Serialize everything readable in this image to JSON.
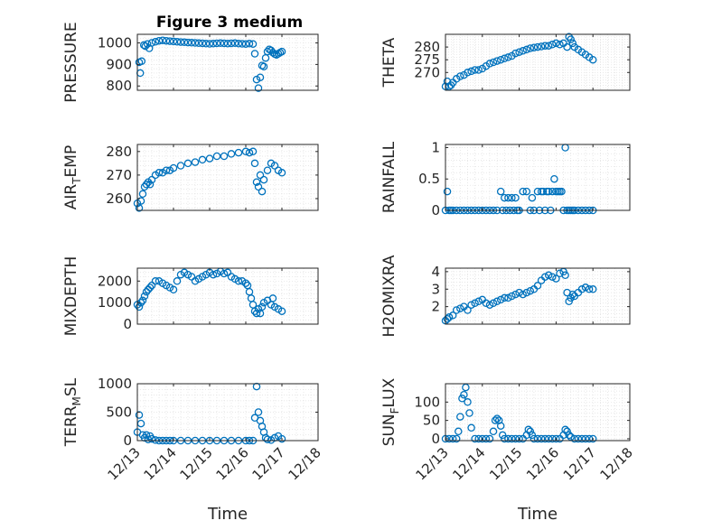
{
  "figure": {
    "title": "Figure 3 medium",
    "xlabel": "Time"
  },
  "style": {
    "marker_color": "#0072BD",
    "axis_color": "#262626",
    "grid_color": "#dfdfdf",
    "background": "#ffffff"
  },
  "chart_data": [
    {
      "type": "scatter",
      "ylabel": "PRESSURE",
      "ylim": [
        780,
        1040
      ],
      "yticks": [
        "800",
        "900",
        "1000"
      ],
      "xlim": [
        "12/13",
        "12/17"
      ],
      "grid": "on",
      "x": [
        13.05,
        13.08,
        13.12,
        13.18,
        13.22,
        13.28,
        13.33,
        13.4,
        13.5,
        13.6,
        13.7,
        13.8,
        13.9,
        14.0,
        14.1,
        14.2,
        14.3,
        14.4,
        14.5,
        14.6,
        14.7,
        14.8,
        14.9,
        15.0,
        15.1,
        15.2,
        15.3,
        15.4,
        15.5,
        15.6,
        15.7,
        15.8,
        15.9,
        16.0,
        16.1,
        16.2,
        16.25,
        16.3,
        16.35,
        16.4,
        16.45,
        16.5,
        16.55,
        16.6,
        16.65,
        16.7,
        16.75,
        16.8,
        16.85,
        16.9,
        16.95,
        17.0
      ],
      "y": [
        910,
        860,
        915,
        990,
        985,
        995,
        975,
        1000,
        1005,
        1010,
        1012,
        1010,
        1008,
        1007,
        1005,
        1004,
        1003,
        1002,
        1001,
        1000,
        999,
        998,
        997,
        996,
        997,
        998,
        999,
        998,
        997,
        998,
        999,
        997,
        996,
        995,
        997,
        995,
        950,
        830,
        790,
        840,
        895,
        890,
        930,
        960,
        970,
        965,
        955,
        948,
        945,
        950,
        955,
        960
      ]
    },
    {
      "type": "scatter",
      "ylabel": "THETA",
      "ylim": [
        263,
        285
      ],
      "yticks": [
        "270",
        "275",
        "280"
      ],
      "xlim": [
        "12/13",
        "12/18"
      ],
      "grid": "on",
      "x": [
        13.0,
        13.05,
        13.1,
        13.15,
        13.2,
        13.3,
        13.4,
        13.5,
        13.6,
        13.7,
        13.8,
        13.9,
        14.0,
        14.1,
        14.2,
        14.3,
        14.4,
        14.5,
        14.6,
        14.7,
        14.8,
        14.9,
        15.0,
        15.1,
        15.2,
        15.3,
        15.4,
        15.5,
        15.6,
        15.7,
        15.8,
        15.9,
        16.0,
        16.1,
        16.2,
        16.3,
        16.35,
        16.4,
        16.45,
        16.5,
        16.6,
        16.7,
        16.8,
        16.9,
        17.0
      ],
      "y": [
        264.5,
        266.5,
        264.5,
        265,
        266,
        267.5,
        268.5,
        269,
        270,
        270.5,
        271,
        271,
        271.5,
        272.5,
        273.5,
        274,
        274.5,
        275,
        275.5,
        276,
        276.5,
        277.5,
        278,
        278.5,
        279,
        279.5,
        279.8,
        280,
        280.2,
        280.5,
        280.5,
        281,
        281.5,
        281,
        281.5,
        280,
        284,
        283,
        281.5,
        280,
        279,
        278,
        277,
        276,
        275
      ]
    },
    {
      "type": "scatter",
      "ylabel": "AIR_TEMP",
      "ylim": [
        255,
        283
      ],
      "yticks": [
        "260",
        "270",
        "280"
      ],
      "xlim": [
        "12/13",
        "12/17"
      ],
      "grid": "on",
      "x": [
        13.0,
        13.05,
        13.1,
        13.15,
        13.2,
        13.25,
        13.3,
        13.35,
        13.4,
        13.5,
        13.6,
        13.7,
        13.8,
        13.9,
        14.0,
        14.2,
        14.4,
        14.6,
        14.8,
        15.0,
        15.2,
        15.4,
        15.6,
        15.8,
        16.0,
        16.1,
        16.2,
        16.25,
        16.3,
        16.35,
        16.4,
        16.45,
        16.5,
        16.6,
        16.7,
        16.8,
        16.9,
        17.0
      ],
      "y": [
        258,
        256,
        259,
        262,
        265,
        266,
        267,
        266,
        268,
        270,
        271,
        271,
        272,
        272,
        273,
        274,
        275,
        275.5,
        276.5,
        277,
        278,
        278,
        279,
        279.5,
        280,
        279.5,
        280,
        275,
        267,
        265,
        270,
        263,
        268,
        272,
        275,
        274,
        272,
        271
      ]
    },
    {
      "type": "scatter",
      "ylabel": "RAINFALL",
      "ylim": [
        0,
        1.05
      ],
      "yticks": [
        "0",
        "0.5",
        "1"
      ],
      "xlim": [
        "12/13",
        "12/18"
      ],
      "grid": "on",
      "x": [
        13.0,
        13.05,
        13.1,
        13.15,
        13.2,
        13.3,
        13.4,
        13.5,
        13.6,
        13.7,
        13.8,
        13.9,
        14.0,
        14.1,
        14.2,
        14.3,
        14.4,
        14.5,
        14.55,
        14.6,
        14.65,
        14.7,
        14.75,
        14.8,
        14.85,
        14.9,
        14.95,
        15.0,
        15.1,
        15.2,
        15.3,
        15.35,
        15.4,
        15.5,
        15.55,
        15.6,
        15.65,
        15.7,
        15.75,
        15.8,
        15.85,
        15.9,
        15.95,
        16.0,
        16.05,
        16.1,
        16.15,
        16.2,
        16.25,
        16.3,
        16.35,
        16.4,
        16.45,
        16.5,
        16.6,
        16.7,
        16.8,
        16.9,
        17.0
      ],
      "y": [
        0,
        0.3,
        0,
        0,
        0,
        0,
        0,
        0,
        0,
        0,
        0,
        0,
        0,
        0,
        0,
        0,
        0,
        0.3,
        0,
        0.2,
        0,
        0.2,
        0,
        0.2,
        0,
        0.2,
        0,
        0,
        0.3,
        0.3,
        0,
        0.2,
        0,
        0.3,
        0,
        0.3,
        0.3,
        0,
        0.3,
        0.3,
        0,
        0.3,
        0.5,
        0.3,
        0.3,
        0.3,
        0.3,
        0,
        1,
        0,
        0,
        0,
        0,
        0,
        0,
        0,
        0,
        0,
        0
      ]
    },
    {
      "type": "scatter",
      "ylabel": "MIXDEPTH",
      "ylim": [
        0,
        2600
      ],
      "yticks": [
        "0",
        "1000",
        "2000"
      ],
      "xlim": [
        "12/13",
        "12/17"
      ],
      "grid": "on",
      "x": [
        13.0,
        13.05,
        13.1,
        13.15,
        13.2,
        13.25,
        13.3,
        13.35,
        13.4,
        13.5,
        13.6,
        13.7,
        13.8,
        13.9,
        14.0,
        14.1,
        14.2,
        14.3,
        14.4,
        14.5,
        14.6,
        14.7,
        14.8,
        14.9,
        15.0,
        15.1,
        15.2,
        15.3,
        15.4,
        15.5,
        15.6,
        15.7,
        15.8,
        15.9,
        16.0,
        16.05,
        16.1,
        16.15,
        16.2,
        16.25,
        16.3,
        16.35,
        16.4,
        16.45,
        16.5,
        16.6,
        16.7,
        16.75,
        16.8,
        16.9,
        17.0
      ],
      "y": [
        900,
        800,
        1000,
        1100,
        1300,
        1500,
        1600,
        1700,
        1800,
        2000,
        2000,
        1900,
        1800,
        1700,
        1600,
        2000,
        2300,
        2400,
        2300,
        2200,
        2000,
        2100,
        2200,
        2300,
        2400,
        2300,
        2350,
        2450,
        2350,
        2400,
        2200,
        2100,
        2000,
        2000,
        1900,
        1800,
        1500,
        1200,
        900,
        600,
        500,
        700,
        500,
        800,
        1000,
        1100,
        900,
        1200,
        800,
        700,
        600
      ]
    },
    {
      "type": "scatter",
      "ylabel": "H2OMIXRA",
      "ylim": [
        1,
        4.2
      ],
      "yticks": [
        "2",
        "3",
        "4"
      ],
      "xlim": [
        "12/13",
        "12/18"
      ],
      "grid": "on",
      "x": [
        13.0,
        13.05,
        13.1,
        13.2,
        13.3,
        13.4,
        13.5,
        13.6,
        13.7,
        13.8,
        13.9,
        14.0,
        14.1,
        14.2,
        14.3,
        14.4,
        14.5,
        14.6,
        14.7,
        14.8,
        14.9,
        15.0,
        15.1,
        15.2,
        15.3,
        15.4,
        15.5,
        15.6,
        15.7,
        15.8,
        15.9,
        16.0,
        16.1,
        16.2,
        16.25,
        16.3,
        16.35,
        16.4,
        16.45,
        16.5,
        16.6,
        16.7,
        16.8,
        16.9,
        17.0
      ],
      "y": [
        1.2,
        1.3,
        1.4,
        1.5,
        1.8,
        1.9,
        2.0,
        1.8,
        2.1,
        2.2,
        2.3,
        2.4,
        2.2,
        2.1,
        2.2,
        2.3,
        2.4,
        2.5,
        2.5,
        2.6,
        2.7,
        2.8,
        2.7,
        2.8,
        2.9,
        3.0,
        3.2,
        3.5,
        3.7,
        3.8,
        3.7,
        3.6,
        3.9,
        4.0,
        3.8,
        2.8,
        2.3,
        2.5,
        2.7,
        2.6,
        2.8,
        3.0,
        3.1,
        3.0,
        3.0
      ]
    },
    {
      "type": "scatter",
      "ylabel": "TERR_MSL",
      "ylim": [
        0,
        1000
      ],
      "yticks": [
        "0",
        "500",
        "1000"
      ],
      "xlim": [
        "12/13",
        "12/18"
      ],
      "xticks": [
        "12/13",
        "12/14",
        "12/15",
        "12/16",
        "12/17",
        "12/18"
      ],
      "grid": "on",
      "x": [
        13.0,
        13.05,
        13.1,
        13.15,
        13.2,
        13.25,
        13.3,
        13.35,
        13.4,
        13.5,
        13.6,
        13.7,
        13.8,
        13.9,
        14.0,
        14.2,
        14.4,
        14.6,
        14.8,
        15.0,
        15.2,
        15.4,
        15.6,
        15.8,
        16.0,
        16.1,
        16.2,
        16.25,
        16.3,
        16.35,
        16.4,
        16.45,
        16.5,
        16.55,
        16.6,
        16.7,
        16.8,
        16.9,
        17.0
      ],
      "y": [
        150,
        450,
        300,
        100,
        50,
        100,
        20,
        80,
        30,
        10,
        0,
        0,
        0,
        0,
        0,
        0,
        0,
        0,
        0,
        0,
        0,
        0,
        0,
        0,
        0,
        0,
        0,
        400,
        950,
        500,
        350,
        250,
        150,
        50,
        20,
        10,
        50,
        80,
        30
      ]
    },
    {
      "type": "scatter",
      "ylabel": "SUN_FLUX",
      "ylim": [
        -5,
        150
      ],
      "yticks": [
        "0",
        "50",
        "100"
      ],
      "xlim": [
        "12/13",
        "12/18"
      ],
      "xticks": [
        "12/13",
        "12/14",
        "12/15",
        "12/16",
        "12/17",
        "12/18"
      ],
      "grid": "on",
      "x": [
        13.0,
        13.1,
        13.2,
        13.3,
        13.35,
        13.4,
        13.45,
        13.5,
        13.55,
        13.6,
        13.65,
        13.7,
        13.8,
        13.9,
        14.0,
        14.1,
        14.2,
        14.3,
        14.35,
        14.4,
        14.45,
        14.5,
        14.55,
        14.6,
        14.7,
        14.8,
        14.9,
        15.0,
        15.1,
        15.2,
        15.25,
        15.3,
        15.35,
        15.4,
        15.5,
        15.6,
        15.7,
        15.8,
        15.9,
        16.0,
        16.1,
        16.2,
        16.25,
        16.3,
        16.35,
        16.4,
        16.5,
        16.6,
        16.7,
        16.8,
        16.9,
        17.0
      ],
      "y": [
        0,
        0,
        0,
        0,
        20,
        60,
        110,
        120,
        140,
        100,
        70,
        30,
        0,
        0,
        0,
        0,
        0,
        20,
        50,
        55,
        50,
        35,
        10,
        0,
        0,
        0,
        0,
        0,
        0,
        10,
        25,
        20,
        10,
        0,
        0,
        0,
        0,
        0,
        0,
        0,
        0,
        10,
        25,
        20,
        10,
        5,
        0,
        0,
        0,
        0,
        0,
        0
      ]
    }
  ]
}
